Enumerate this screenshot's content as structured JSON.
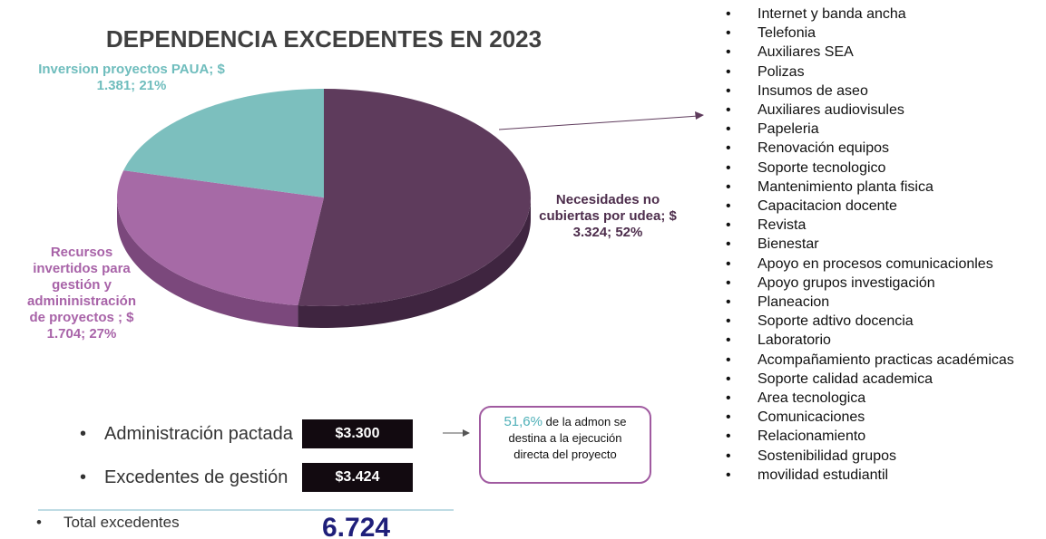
{
  "chart_data": {
    "type": "pie",
    "title": "DEPENDENCIA EXCEDENTES EN  2023",
    "values": [
      52,
      27,
      21
    ],
    "value_labels": [
      "Necesidades no cubiertas por udea; $ 3.324; 52%",
      "Recursos invertidos para gestión y admininistración de proyectos ; $ 1.704; 27%",
      "Inversion proyectos PAUA; $ 1.381; 21%"
    ],
    "colors": [
      "#5e3b5c",
      "#a66aa6",
      "#7cbfbe"
    ],
    "side_colors": [
      "#3f2540",
      "#7b487c",
      "#5a9e9d"
    ],
    "label_colors": [
      "#4d2d4c",
      "#a863a8",
      "#6fbdbd"
    ]
  },
  "list": [
    "Internet y banda ancha",
    "Telefonia",
    "Auxiliares SEA",
    "Polizas",
    "Insumos de aseo",
    "Auxiliares audiovisules",
    "Papeleria",
    "Renovación equipos",
    "Soporte tecnologico",
    "Mantenimiento planta fisica",
    "Capacitacion docente",
    "Revista",
    "Bienestar",
    "Apoyo en procesos comunicacionles",
    "Apoyo grupos  investigación",
    "Planeacion",
    "Soporte adtivo docencia",
    "Laboratorio",
    "Acompañamiento practicas académicas",
    "Soporte calidad academica",
    "Area tecnologica",
    "Comunicaciones",
    "Relacionamiento",
    "Sostenibilidad grupos",
    "movilidad estudiantil"
  ],
  "summary": [
    {
      "label": "Administración pactada",
      "amount": "$3.300"
    },
    {
      "label": "Excedentes de gestión",
      "amount": "$3.424"
    }
  ],
  "note": {
    "highlight": "51,6%",
    "lines": [
      "de la admon se",
      "destina a la ejecución",
      "directa del proyecto"
    ]
  },
  "total": {
    "label": "Total excedentes",
    "amount": "6.724"
  }
}
